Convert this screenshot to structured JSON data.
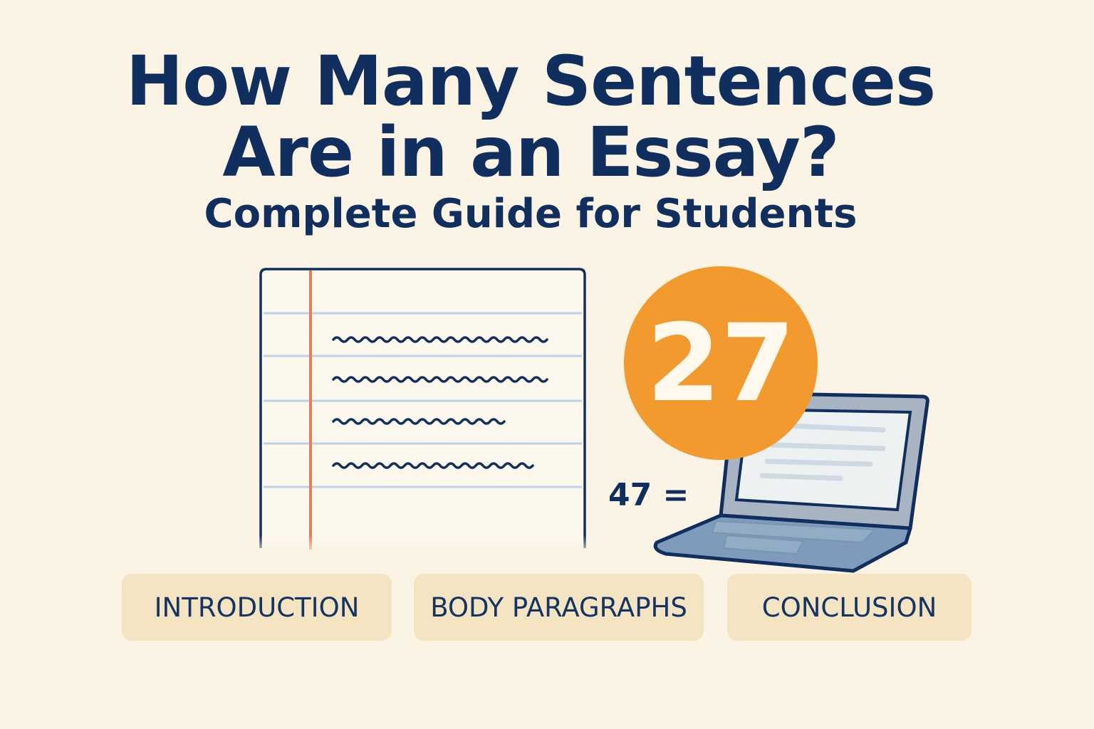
{
  "title": {
    "line1": "How Many Sentences",
    "line2": "Are in an Essay?"
  },
  "subtitle": "Complete Guide for Students",
  "badge": {
    "number": "27",
    "color": "#f39a2e"
  },
  "equation": "47 =",
  "sections": [
    {
      "label": "INTRODUCTION"
    },
    {
      "label": "BODY PARAGRAPHS"
    },
    {
      "label": "CONCLUSION"
    }
  ],
  "colors": {
    "background": "#fbf3e4",
    "text": "#102f5f",
    "pill": "#f5e4c2",
    "margin_line": "#ee7a5a",
    "ruled_line": "#bcd2e6"
  }
}
